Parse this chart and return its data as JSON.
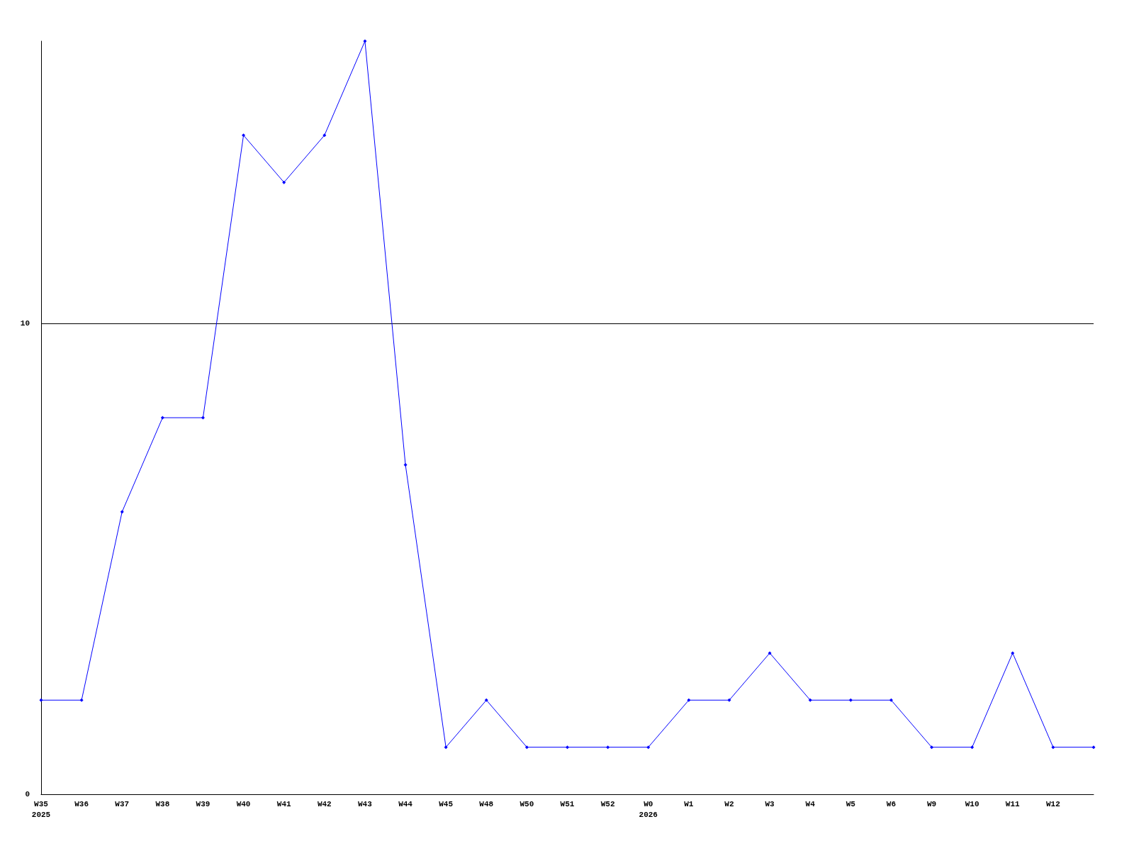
{
  "chart_data": {
    "type": "line",
    "categories": [
      "W35\n2025",
      "W36",
      "W37",
      "W38",
      "W39",
      "W40",
      "W41",
      "W42",
      "W43",
      "W44",
      "W45",
      "W48",
      "W50",
      "W51",
      "W52",
      "W0\n2026",
      "W1",
      "W2",
      "W3",
      "W4",
      "W5",
      "W6",
      "W9",
      "W10",
      "W11",
      "W12",
      null
    ],
    "series": [
      {
        "color": "#0000ff",
        "values": [
          2,
          2,
          6,
          8,
          8,
          14,
          13,
          14,
          16,
          7,
          1,
          2,
          1,
          1,
          1,
          1,
          2,
          2,
          3,
          2,
          2,
          2,
          1,
          1,
          3,
          1,
          1
        ]
      }
    ],
    "ylim": [
      0,
      16
    ],
    "yticks": [
      0,
      10
    ],
    "grid": "y",
    "marker": "diamond",
    "line_style": "solid"
  }
}
